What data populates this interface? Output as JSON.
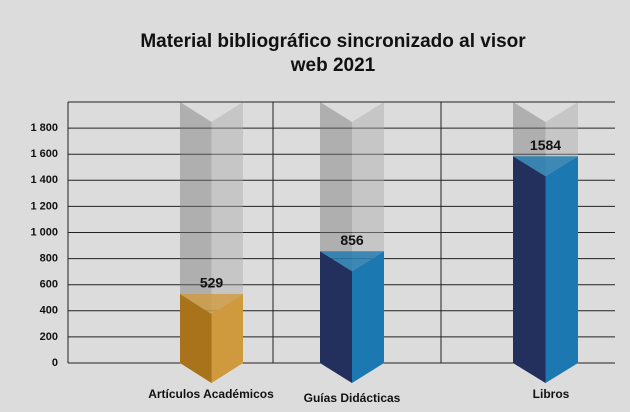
{
  "chart_data": {
    "type": "bar3d",
    "title": "Material bibliográfico sincronizado al visor",
    "subtitle": "web 2021",
    "categories": [
      "Artículos Académicos",
      "Guías Didácticas",
      "Libros"
    ],
    "values": [
      529,
      856,
      1584
    ],
    "colors": [
      [
        "#a8731a",
        "#cf9a3e"
      ],
      [
        "#232f5c",
        "#1b78b0"
      ],
      [
        "#232f5c",
        "#1b78b0"
      ]
    ],
    "ylim": [
      0,
      2000
    ],
    "yticks": [
      0,
      200,
      400,
      600,
      800,
      {
        "value": 1000,
        "label": "1 000"
      },
      {
        "value": 1200,
        "label": "1 200"
      },
      {
        "value": 1400,
        "label": "1 400"
      },
      {
        "value": 1600,
        "label": "1 600"
      },
      {
        "value": 1800,
        "label": "1 800"
      }
    ],
    "grid": true
  }
}
